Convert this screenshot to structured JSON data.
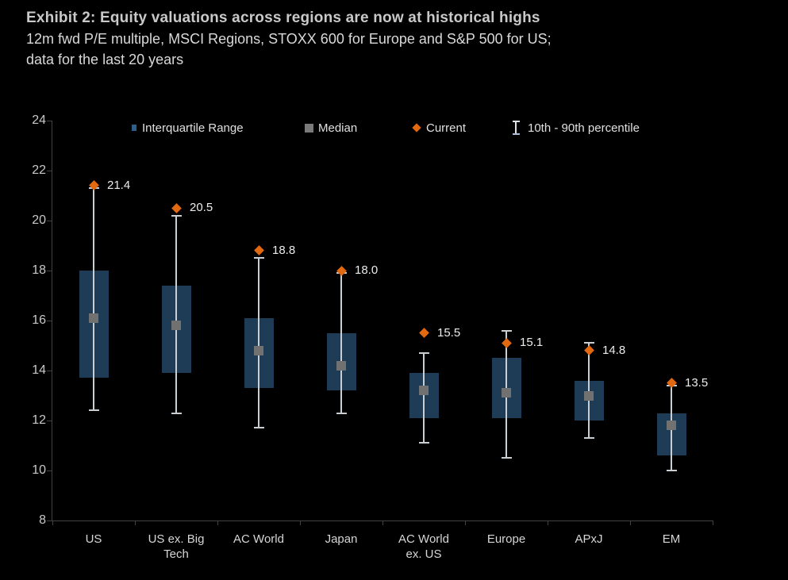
{
  "header": {
    "title": "Exhibit 2: Equity valuations across regions are now at historical highs",
    "subtitle_line1": "12m fwd P/E multiple, MSCI Regions, STOXX 600 for Europe and S&P 500 for US;",
    "subtitle_line2": "data for the last 20 years"
  },
  "legend": {
    "iqr_label": "Interquartile Range",
    "median_label": "Median",
    "current_label": "Current",
    "percentile_label": "10th - 90th percentile",
    "icons": {
      "iqr": "blue-square",
      "median": "gray-square",
      "current": "orange-diamond",
      "percentile": "i-beam-whisker"
    }
  },
  "colors": {
    "background": "#000000",
    "iqr_box": "#1e3c55",
    "median": "#717171",
    "current": "#e2690f",
    "whisker": "#c9ced3",
    "axis": "#424242",
    "text": "#d9d9d9"
  },
  "chart_data": {
    "type": "boxplot",
    "title": "Exhibit 2: Equity valuations across regions are now at historical highs",
    "subtitle": "12m fwd P/E multiple, MSCI Regions, STOXX 600 for Europe and S&P 500 for US; data for the last 20 years",
    "xlabel": "",
    "ylabel": "12m fwd P/E multiple",
    "ylim": [
      8,
      24
    ],
    "yticks": [
      8,
      10,
      12,
      14,
      16,
      18,
      20,
      22,
      24
    ],
    "grid": false,
    "legend_position": "top-inside",
    "categories": [
      "US",
      "US ex. Big Tech",
      "AC World",
      "Japan",
      "AC World ex. US",
      "Europe",
      "APxJ",
      "EM"
    ],
    "category_label_lines": [
      [
        "US"
      ],
      [
        "US ex. Big",
        "Tech"
      ],
      [
        "AC World"
      ],
      [
        "Japan"
      ],
      [
        "AC World",
        "ex. US"
      ],
      [
        "Europe"
      ],
      [
        "APxJ"
      ],
      [
        "EM"
      ]
    ],
    "series": [
      {
        "name": "US",
        "current": 21.4,
        "current_label": "21.4",
        "p90": 21.3,
        "q3": 18.0,
        "median": 16.1,
        "q1": 13.7,
        "p10": 12.4
      },
      {
        "name": "US ex. Big Tech",
        "current": 20.5,
        "current_label": "20.5",
        "p90": 20.2,
        "q3": 17.4,
        "median": 15.8,
        "q1": 13.9,
        "p10": 12.3
      },
      {
        "name": "AC World",
        "current": 18.8,
        "current_label": "18.8",
        "p90": 18.5,
        "q3": 16.1,
        "median": 14.8,
        "q1": 13.3,
        "p10": 11.7
      },
      {
        "name": "Japan",
        "current": 18.0,
        "current_label": "18.0",
        "p90": 17.9,
        "q3": 15.5,
        "median": 14.2,
        "q1": 13.2,
        "p10": 12.3
      },
      {
        "name": "AC World ex. US",
        "current": 15.5,
        "current_label": "15.5",
        "p90": 14.7,
        "q3": 13.9,
        "median": 13.2,
        "q1": 12.1,
        "p10": 11.1
      },
      {
        "name": "Europe",
        "current": 15.1,
        "current_label": "15.1",
        "p90": 15.6,
        "q3": 14.5,
        "median": 13.1,
        "q1": 12.1,
        "p10": 10.5
      },
      {
        "name": "APxJ",
        "current": 14.8,
        "current_label": "14.8",
        "p90": 15.1,
        "q3": 13.6,
        "median": 13.0,
        "q1": 12.0,
        "p10": 11.3
      },
      {
        "name": "EM",
        "current": 13.5,
        "current_label": "13.5",
        "p90": 13.4,
        "q3": 12.3,
        "median": 11.8,
        "q1": 10.6,
        "p10": 10.0
      }
    ]
  }
}
